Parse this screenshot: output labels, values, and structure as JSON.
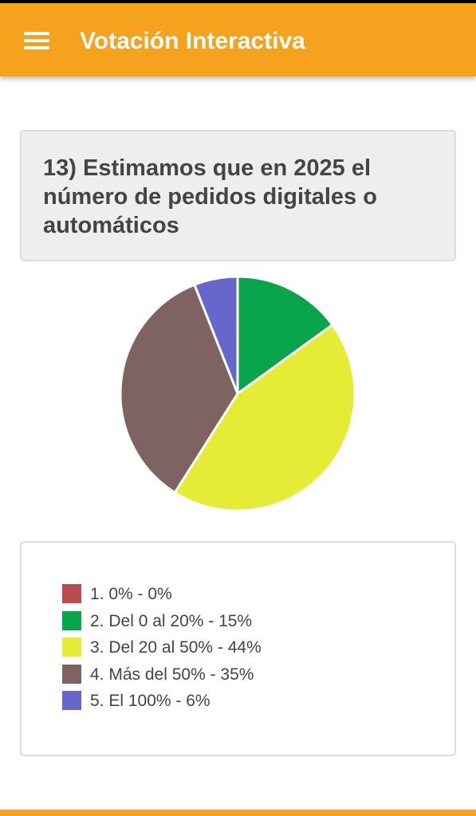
{
  "header": {
    "title": "Votación Interactiva",
    "menu_icon": "hamburger-menu-icon",
    "background": "#f5a21f"
  },
  "question": {
    "text": "13) Estimamos que en 2025 el número de pedidos digitales o automáticos"
  },
  "chart_data": {
    "type": "pie",
    "title": "",
    "legend_placement": "bottom",
    "start_angle_deg": 0,
    "slices": [
      {
        "label": "1. 0% - 0%",
        "value": 0,
        "color": "#b94c4c"
      },
      {
        "label": "2. Del 0 al 20% - 15%",
        "value": 15,
        "color": "#08a54c"
      },
      {
        "label": "3. Del 20 al 50% - 44%",
        "value": 44,
        "color": "#e4ec35"
      },
      {
        "label": "4. Más del 50% - 35%",
        "value": 35,
        "color": "#7f6262"
      },
      {
        "label": "5. El 100% - 6%",
        "value": 6,
        "color": "#6666cc"
      }
    ]
  },
  "footer": {
    "color": "#f5a21f"
  }
}
